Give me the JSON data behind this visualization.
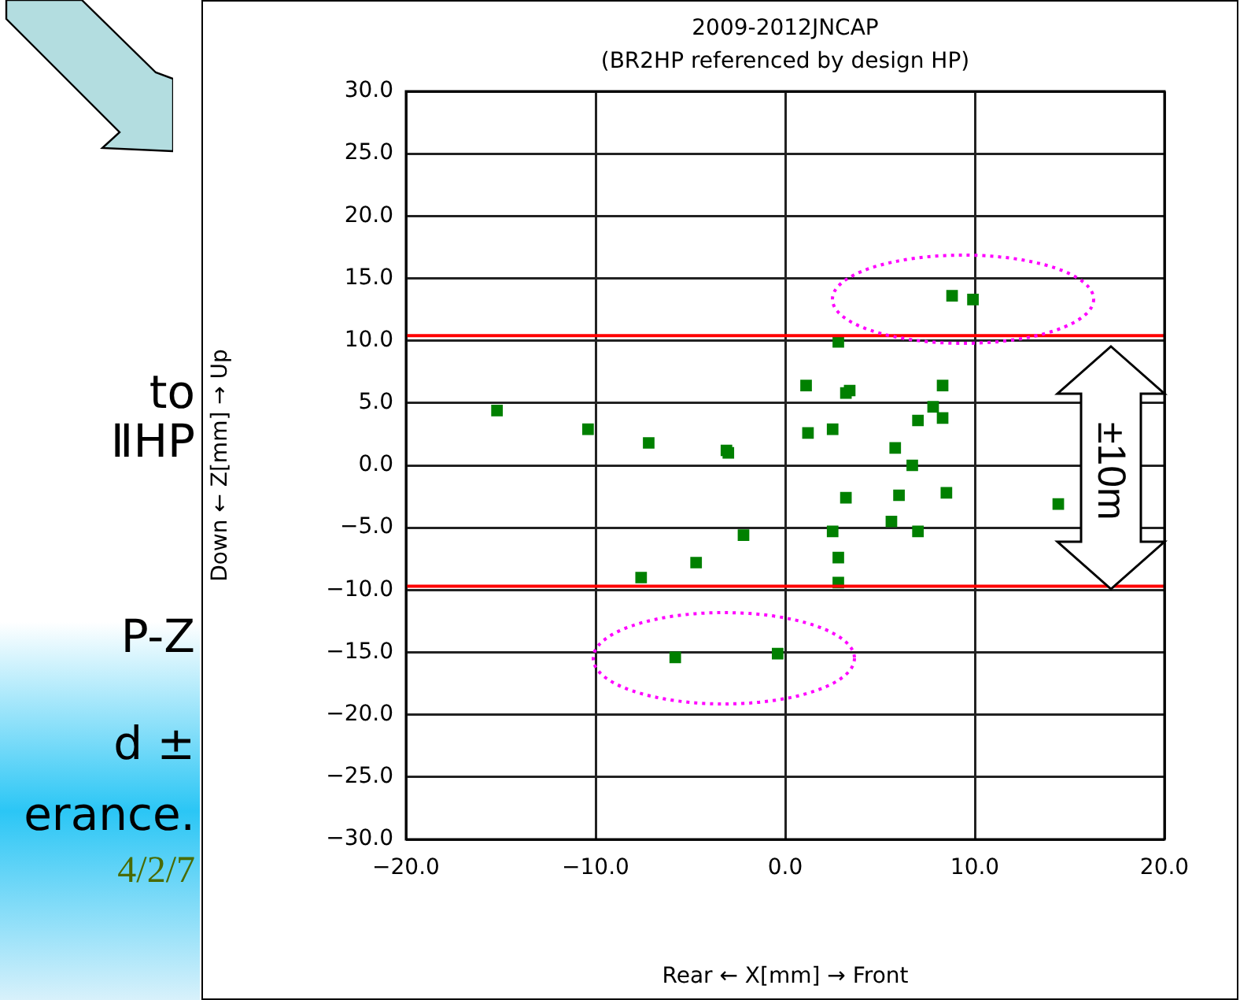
{
  "chart_data": {
    "type": "scatter",
    "title": "2009-2012JNCAP",
    "subtitle": "(BR2HP referenced by design HP)",
    "xlabel": "Rear ← X[mm] → Front",
    "ylabel": "Down ← Z[mm] → Up",
    "xlim": [
      -20,
      20
    ],
    "xticks": [
      {
        "value": -20,
        "label": "−20.0"
      },
      {
        "value": -10,
        "label": "−10.0"
      },
      {
        "value": 0,
        "label": "0.0"
      },
      {
        "value": 10,
        "label": "10.0"
      },
      {
        "value": 20,
        "label": "20.0"
      }
    ],
    "ylim": [
      -30,
      30
    ],
    "yticks": [
      {
        "value": -30,
        "label": "−30.0"
      },
      {
        "value": -25,
        "label": "−25.0"
      },
      {
        "value": -20,
        "label": "−20.0"
      },
      {
        "value": -15,
        "label": "−15.0"
      },
      {
        "value": -10,
        "label": "−10.0"
      },
      {
        "value": -5,
        "label": "−5.0"
      },
      {
        "value": 0,
        "label": "0.0"
      },
      {
        "value": 5,
        "label": "5.0"
      },
      {
        "value": 10,
        "label": "10.0"
      },
      {
        "value": 15,
        "label": "15.0"
      },
      {
        "value": 20,
        "label": "20.0"
      },
      {
        "value": 25,
        "label": "25.0"
      },
      {
        "value": 30,
        "label": "30.0"
      }
    ],
    "grid": true,
    "legend": false,
    "marker": "square",
    "series": [
      {
        "color": "#008000",
        "x": [
          -15.2,
          -10.4,
          -7.2,
          -3.1,
          -3.0,
          -7.6,
          -4.7,
          -2.2,
          -5.8,
          -0.4,
          8.8,
          9.9,
          2.8,
          1.1,
          3.2,
          3.4,
          8.3,
          7.8,
          7.0,
          8.3,
          1.2,
          2.5,
          5.8,
          6.7,
          3.2,
          6.0,
          8.5,
          14.4,
          2.5,
          5.6,
          7.0,
          2.8,
          2.8
        ],
        "values": [
          4.4,
          2.9,
          1.8,
          1.2,
          1.0,
          -9.0,
          -7.8,
          -5.6,
          -15.4,
          -15.1,
          13.6,
          13.3,
          9.9,
          6.4,
          5.8,
          6.0,
          6.4,
          4.7,
          3.6,
          3.8,
          2.6,
          2.9,
          1.4,
          0.0,
          -2.6,
          -2.4,
          -2.2,
          -3.1,
          -5.3,
          -4.5,
          -5.3,
          -7.4,
          -9.4
        ]
      }
    ],
    "ref_lines": [
      {
        "axis": "y",
        "value": 10.4,
        "color": "#ff0000"
      },
      {
        "axis": "y",
        "value": -9.7,
        "color": "#ff0000"
      }
    ],
    "annotations": [
      "±10m",
      "to",
      "ⅡHP",
      "P-Z",
      "d ±",
      "erance.",
      "4/2/7"
    ]
  }
}
